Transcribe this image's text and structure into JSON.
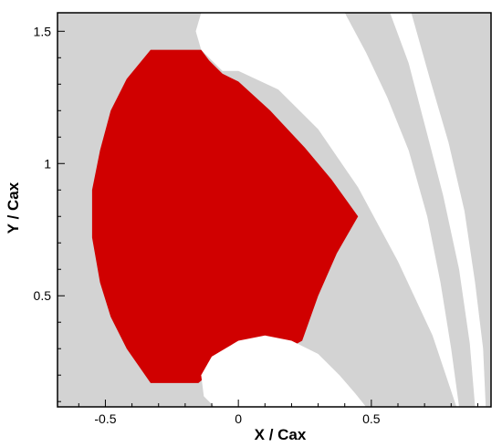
{
  "chart_data": {
    "type": "contour-region",
    "title": "",
    "xlabel": "X / Cax",
    "ylabel": "Y / Cax",
    "xlim": [
      -0.68,
      0.95
    ],
    "ylim": [
      0.08,
      1.57
    ],
    "x_ticks": [
      "-0.5",
      "0",
      "0.5"
    ],
    "x_tick_values": [
      -0.5,
      0,
      0.5
    ],
    "y_ticks": [
      "0.5",
      "1",
      "1.5"
    ],
    "y_tick_values": [
      0.5,
      1,
      1.5
    ],
    "grid": false,
    "colors": {
      "region": "#d00000",
      "background": "#d3d3d3",
      "blade": "#ffffff"
    },
    "regions": [
      {
        "name": "red-region",
        "color": "#d00000",
        "outline": [
          [
            -0.33,
            1.43
          ],
          [
            -0.14,
            1.43
          ],
          [
            -0.11,
            1.39
          ],
          [
            -0.06,
            1.34
          ],
          [
            0.0,
            1.31
          ],
          [
            0.12,
            1.2
          ],
          [
            0.25,
            1.06
          ],
          [
            0.35,
            0.94
          ],
          [
            0.45,
            0.8
          ],
          [
            0.37,
            0.66
          ],
          [
            0.3,
            0.5
          ],
          [
            0.24,
            0.33
          ],
          [
            0.15,
            0.28
          ],
          [
            0.03,
            0.28
          ],
          [
            -0.08,
            0.23
          ],
          [
            -0.15,
            0.17
          ],
          [
            -0.33,
            0.17
          ],
          [
            -0.42,
            0.3
          ],
          [
            -0.48,
            0.42
          ],
          [
            -0.52,
            0.55
          ],
          [
            -0.55,
            0.72
          ],
          [
            -0.55,
            0.9
          ],
          [
            -0.52,
            1.05
          ],
          [
            -0.48,
            1.2
          ],
          [
            -0.42,
            1.32
          ]
        ]
      }
    ],
    "blades": [
      {
        "name": "upper-blade",
        "outline": [
          [
            -0.14,
            1.57
          ],
          [
            0.4,
            1.57
          ],
          [
            0.48,
            1.42
          ],
          [
            0.56,
            1.25
          ],
          [
            0.64,
            1.05
          ],
          [
            0.71,
            0.8
          ],
          [
            0.76,
            0.55
          ],
          [
            0.8,
            0.3
          ],
          [
            0.83,
            0.08
          ],
          [
            0.82,
            0.08
          ],
          [
            0.73,
            0.35
          ],
          [
            0.6,
            0.63
          ],
          [
            0.45,
            0.91
          ],
          [
            0.3,
            1.13
          ],
          [
            0.15,
            1.28
          ],
          [
            0.0,
            1.35
          ],
          [
            -0.06,
            1.35
          ],
          [
            -0.1,
            1.39
          ],
          [
            -0.14,
            1.43
          ],
          [
            -0.16,
            1.5
          ]
        ]
      },
      {
        "name": "lower-blade",
        "outline": [
          [
            -0.14,
            0.2
          ],
          [
            -0.1,
            0.27
          ],
          [
            0.0,
            0.33
          ],
          [
            0.1,
            0.35
          ],
          [
            0.2,
            0.33
          ],
          [
            0.3,
            0.28
          ],
          [
            0.38,
            0.2
          ],
          [
            0.44,
            0.13
          ],
          [
            0.48,
            0.08
          ],
          [
            -0.09,
            0.08
          ],
          [
            -0.13,
            0.12
          ]
        ]
      },
      {
        "name": "right-blade-strip",
        "outline": [
          [
            0.57,
            1.57
          ],
          [
            0.65,
            1.57
          ],
          [
            0.72,
            1.32
          ],
          [
            0.79,
            1.08
          ],
          [
            0.85,
            0.82
          ],
          [
            0.89,
            0.55
          ],
          [
            0.92,
            0.3
          ],
          [
            0.93,
            0.08
          ],
          [
            0.89,
            0.08
          ],
          [
            0.87,
            0.32
          ],
          [
            0.83,
            0.6
          ],
          [
            0.77,
            0.88
          ],
          [
            0.7,
            1.15
          ],
          [
            0.64,
            1.38
          ]
        ]
      }
    ]
  }
}
